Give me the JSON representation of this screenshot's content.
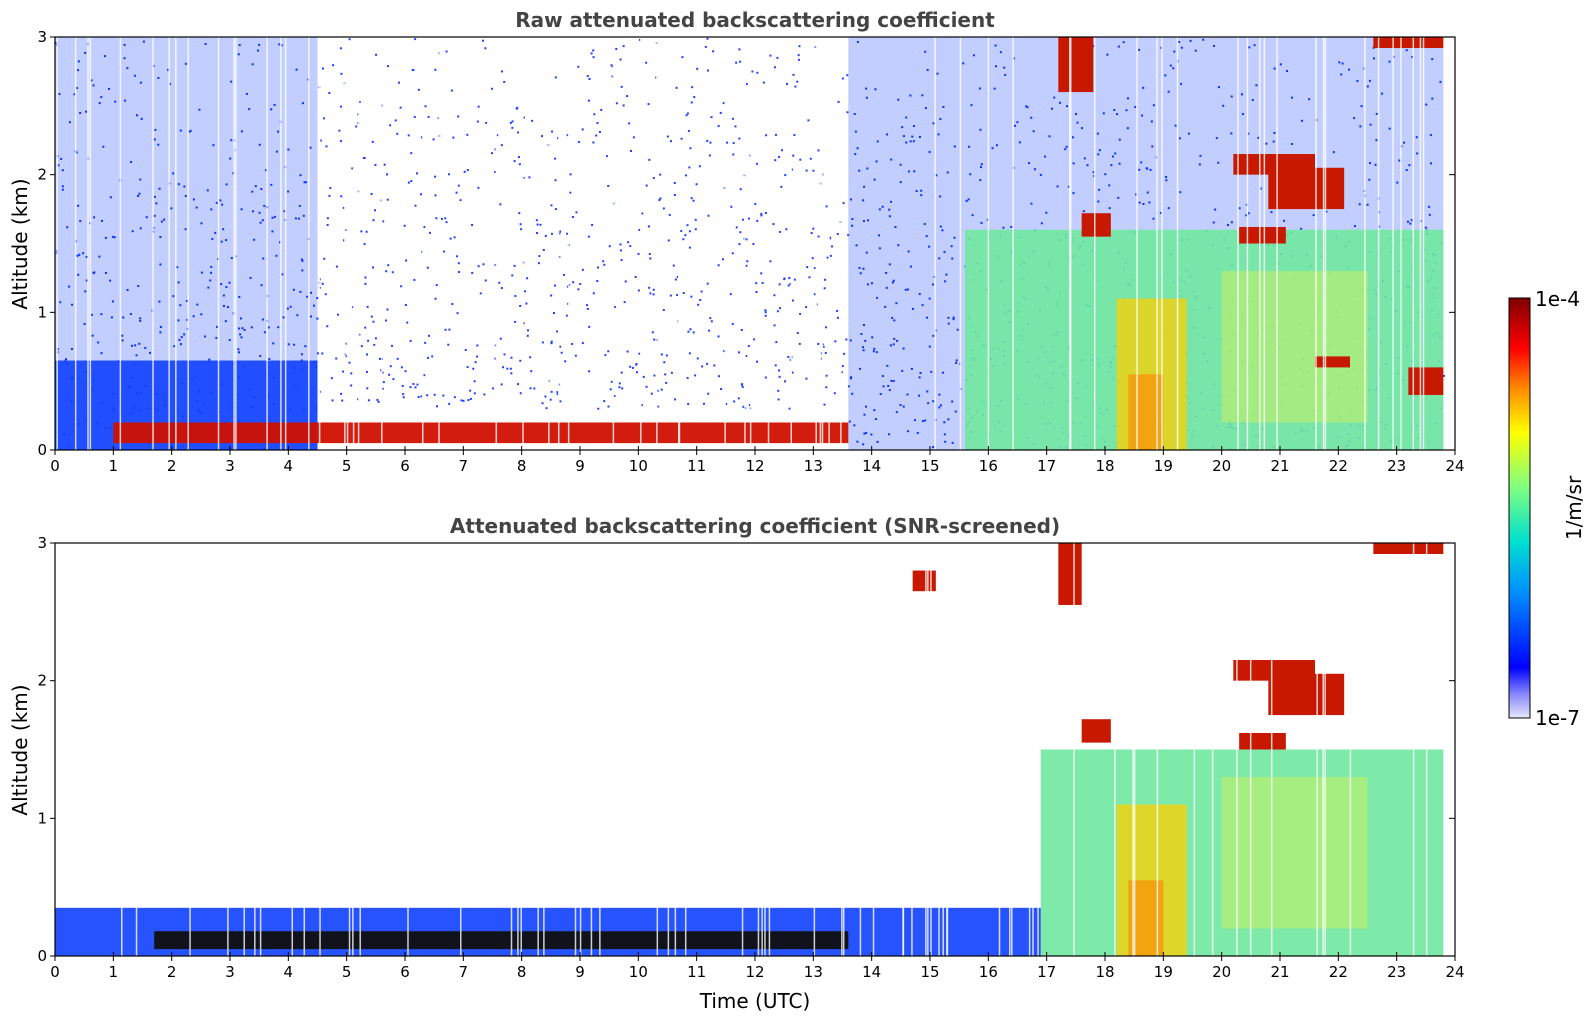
{
  "chart_data": [
    {
      "type": "heatmap",
      "title": "Raw attenuated backscattering coefficient",
      "xlabel": "",
      "ylabel": "Altitude (km)",
      "xlim": [
        0,
        24
      ],
      "ylim": [
        0,
        3
      ],
      "xticks": [
        "0",
        "1",
        "2",
        "3",
        "4",
        "5",
        "6",
        "7",
        "8",
        "9",
        "10",
        "11",
        "12",
        "13",
        "14",
        "15",
        "16",
        "17",
        "18",
        "19",
        "20",
        "21",
        "22",
        "23",
        "24"
      ],
      "yticks": [
        "0",
        "1",
        "2",
        "3"
      ],
      "features": [
        {
          "kind": "noise-blue",
          "t0": 0,
          "t1": 4.5,
          "z0": 0.0,
          "z1": 3.0
        },
        {
          "kind": "boundary-layer",
          "t0": 0,
          "t1": 4.5,
          "z0": 0.0,
          "z1": 0.65
        },
        {
          "kind": "aerosol-red",
          "t0": 1.0,
          "t1": 13.6,
          "z0": 0.05,
          "z1": 0.2
        },
        {
          "kind": "sparse-noise",
          "t0": 4.5,
          "t1": 13.6,
          "z0": 0.3,
          "z1": 3.0
        },
        {
          "kind": "noise-blue",
          "t0": 13.6,
          "t1": 23.8,
          "z0": 0.0,
          "z1": 3.0
        },
        {
          "kind": "aerosol-green",
          "t0": 15.6,
          "t1": 23.8,
          "z0": 0.0,
          "z1": 1.6
        },
        {
          "kind": "cloud",
          "t0": 17.2,
          "t1": 17.8,
          "z0": 2.6,
          "z1": 3.0
        },
        {
          "kind": "cloud",
          "t0": 20.2,
          "t1": 21.6,
          "z0": 2.0,
          "z1": 2.15
        },
        {
          "kind": "cloud",
          "t0": 20.8,
          "t1": 22.1,
          "z0": 1.75,
          "z1": 2.05
        },
        {
          "kind": "cloud",
          "t0": 17.6,
          "t1": 18.1,
          "z0": 1.55,
          "z1": 1.72
        },
        {
          "kind": "cloud",
          "t0": 20.3,
          "t1": 21.1,
          "z0": 1.5,
          "z1": 1.62
        },
        {
          "kind": "cloud",
          "t0": 22.6,
          "t1": 23.8,
          "z0": 2.92,
          "z1": 3.0
        },
        {
          "kind": "cloud",
          "t0": 21.6,
          "t1": 22.2,
          "z0": 0.6,
          "z1": 0.68
        },
        {
          "kind": "cloud",
          "t0": 23.2,
          "t1": 23.8,
          "z0": 0.4,
          "z1": 0.6
        }
      ]
    },
    {
      "type": "heatmap",
      "title": "Attenuated backscattering coefficient (SNR-screened)",
      "xlabel": "Time (UTC)",
      "ylabel": "Altitude (km)",
      "xlim": [
        0,
        24
      ],
      "ylim": [
        0,
        3
      ],
      "xticks": [
        "0",
        "1",
        "2",
        "3",
        "4",
        "5",
        "6",
        "7",
        "8",
        "9",
        "10",
        "11",
        "12",
        "13",
        "14",
        "15",
        "16",
        "17",
        "18",
        "19",
        "20",
        "21",
        "22",
        "23",
        "24"
      ],
      "yticks": [
        "0",
        "1",
        "2",
        "3"
      ],
      "features": [
        {
          "kind": "boundary-layer",
          "t0": 0,
          "t1": 16.9,
          "z0": 0.0,
          "z1": 0.35
        },
        {
          "kind": "saturated",
          "t0": 1.7,
          "t1": 13.6,
          "z0": 0.05,
          "z1": 0.18
        },
        {
          "kind": "aerosol-green",
          "t0": 16.9,
          "t1": 23.8,
          "z0": 0.0,
          "z1": 1.5
        },
        {
          "kind": "cloud",
          "t0": 17.2,
          "t1": 17.6,
          "z0": 2.55,
          "z1": 3.0
        },
        {
          "kind": "cloud",
          "t0": 20.2,
          "t1": 21.6,
          "z0": 2.0,
          "z1": 2.15
        },
        {
          "kind": "cloud",
          "t0": 20.8,
          "t1": 22.1,
          "z0": 1.75,
          "z1": 2.05
        },
        {
          "kind": "cloud",
          "t0": 17.6,
          "t1": 18.1,
          "z0": 1.55,
          "z1": 1.72
        },
        {
          "kind": "cloud",
          "t0": 20.3,
          "t1": 21.1,
          "z0": 1.5,
          "z1": 1.62
        },
        {
          "kind": "cloud",
          "t0": 22.6,
          "t1": 23.8,
          "z0": 2.92,
          "z1": 3.0
        },
        {
          "kind": "cloud",
          "t0": 14.7,
          "t1": 15.1,
          "z0": 2.65,
          "z1": 2.8
        }
      ]
    }
  ],
  "colorbar": {
    "max_label": "1e-4",
    "min_label": "1e-7",
    "units": "1/m/sr",
    "colors": [
      "#e8e8f8",
      "#0000ff",
      "#00a0ff",
      "#00e0c0",
      "#80ff80",
      "#ffff00",
      "#ff8000",
      "#ff0000",
      "#800000"
    ]
  }
}
